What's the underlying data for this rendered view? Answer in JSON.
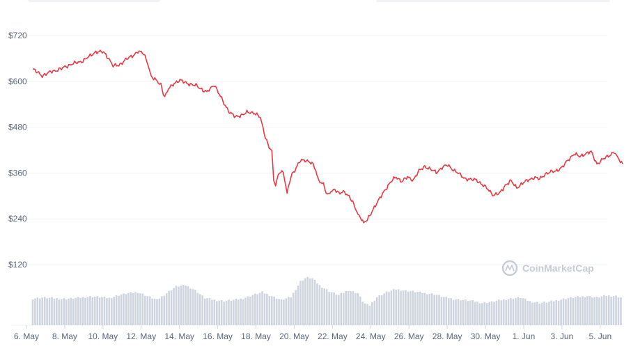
{
  "colors": {
    "price_line": "#ea3943",
    "volume_bar": "#cfd5df",
    "grid": "#eff2f5",
    "axis_text": "#58667e",
    "watermark": "#c6ccd6"
  },
  "watermark": {
    "text": "CoinMarketCap",
    "icon": "coinmarketcap-logo-icon"
  },
  "chart_data": {
    "type": "line",
    "title": "",
    "xlabel": "",
    "ylabel": "",
    "ylim": [
      20,
      800
    ],
    "grid": true,
    "x_ticks": [
      "6. May",
      "8. May",
      "10. May",
      "12. May",
      "14. May",
      "16. May",
      "18. May",
      "20. May",
      "22. May",
      "24. May",
      "26. May",
      "28. May",
      "30. May",
      "1. Jun",
      "3. Jun",
      "5. Jun"
    ],
    "y_ticks": [
      "$720",
      "$600",
      "$480",
      "$360",
      "$240",
      "$120"
    ],
    "y_tick_values": [
      720,
      600,
      480,
      360,
      240,
      120
    ],
    "series": [
      {
        "values": [
          [
            0.0,
            632
          ],
          [
            0.5,
            615
          ],
          [
            1.0,
            626
          ],
          [
            1.5,
            633
          ],
          [
            2.0,
            645
          ],
          [
            2.5,
            651
          ],
          [
            3.0,
            666
          ],
          [
            3.3,
            678
          ],
          [
            3.7,
            676
          ],
          [
            4.0,
            659
          ],
          [
            4.2,
            640
          ],
          [
            4.5,
            642
          ],
          [
            4.8,
            655
          ],
          [
            5.2,
            666
          ],
          [
            5.5,
            679
          ],
          [
            5.8,
            672
          ],
          [
            6.0,
            650
          ],
          [
            6.2,
            612
          ],
          [
            6.5,
            600
          ],
          [
            6.7,
            592
          ],
          [
            6.9,
            558
          ],
          [
            7.1,
            580
          ],
          [
            7.4,
            596
          ],
          [
            7.7,
            602
          ],
          [
            8.0,
            597
          ],
          [
            8.3,
            591
          ],
          [
            8.6,
            588
          ],
          [
            8.9,
            577
          ],
          [
            9.1,
            571
          ],
          [
            9.5,
            592
          ],
          [
            9.7,
            571
          ],
          [
            10.0,
            542
          ],
          [
            10.3,
            519
          ],
          [
            10.6,
            506
          ],
          [
            10.9,
            512
          ],
          [
            11.2,
            518
          ],
          [
            11.6,
            518
          ],
          [
            11.9,
            505
          ],
          [
            12.1,
            465
          ],
          [
            12.3,
            435
          ],
          [
            12.5,
            416
          ],
          [
            12.6,
            340
          ],
          [
            12.7,
            328
          ],
          [
            12.9,
            365
          ],
          [
            13.1,
            362
          ],
          [
            13.3,
            305
          ],
          [
            13.5,
            352
          ],
          [
            13.7,
            368
          ],
          [
            14.0,
            392
          ],
          [
            14.3,
            394
          ],
          [
            14.6,
            385
          ],
          [
            14.8,
            368
          ],
          [
            14.9,
            345
          ],
          [
            15.2,
            330
          ],
          [
            15.4,
            300
          ],
          [
            15.6,
            313
          ],
          [
            15.8,
            318
          ],
          [
            16.0,
            305
          ],
          [
            16.3,
            312
          ],
          [
            16.6,
            295
          ],
          [
            16.8,
            275
          ],
          [
            17.0,
            253
          ],
          [
            17.2,
            240
          ],
          [
            17.3,
            228
          ],
          [
            17.5,
            237
          ],
          [
            17.8,
            266
          ],
          [
            18.1,
            289
          ],
          [
            18.4,
            315
          ],
          [
            18.7,
            335
          ],
          [
            19.0,
            350
          ],
          [
            19.3,
            338
          ],
          [
            19.6,
            349
          ],
          [
            19.9,
            342
          ],
          [
            20.2,
            365
          ],
          [
            20.5,
            378
          ],
          [
            20.8,
            369
          ],
          [
            21.1,
            362
          ],
          [
            21.4,
            374
          ],
          [
            21.7,
            381
          ],
          [
            22.0,
            368
          ],
          [
            22.3,
            357
          ],
          [
            22.6,
            346
          ],
          [
            22.9,
            342
          ],
          [
            23.2,
            343
          ],
          [
            23.5,
            329
          ],
          [
            23.8,
            318
          ],
          [
            24.1,
            302
          ],
          [
            24.4,
            306
          ],
          [
            24.7,
            328
          ],
          [
            25.0,
            339
          ],
          [
            25.3,
            322
          ],
          [
            25.6,
            332
          ],
          [
            25.9,
            342
          ],
          [
            26.2,
            348
          ],
          [
            26.5,
            344
          ],
          [
            26.8,
            358
          ],
          [
            27.1,
            362
          ],
          [
            27.4,
            367
          ],
          [
            27.7,
            375
          ],
          [
            28.0,
            395
          ],
          [
            28.3,
            410
          ],
          [
            28.6,
            403
          ],
          [
            28.9,
            411
          ],
          [
            29.2,
            415
          ],
          [
            29.5,
            384
          ],
          [
            29.8,
            395
          ],
          [
            30.1,
            405
          ],
          [
            30.4,
            415
          ],
          [
            30.6,
            398
          ],
          [
            30.85,
            384
          ]
        ]
      },
      {
        "name": "Volume",
        "values": [
          [
            0.0,
            0.55
          ],
          [
            0.5,
            0.57
          ],
          [
            1.0,
            0.56
          ],
          [
            1.5,
            0.54
          ],
          [
            2.0,
            0.55
          ],
          [
            2.5,
            0.57
          ],
          [
            3.0,
            0.59
          ],
          [
            3.5,
            0.58
          ],
          [
            4.0,
            0.56
          ],
          [
            4.5,
            0.62
          ],
          [
            5.0,
            0.66
          ],
          [
            5.5,
            0.68
          ],
          [
            6.0,
            0.6
          ],
          [
            6.5,
            0.52
          ],
          [
            7.0,
            0.66
          ],
          [
            7.5,
            0.8
          ],
          [
            8.0,
            0.82
          ],
          [
            8.5,
            0.72
          ],
          [
            9.0,
            0.56
          ],
          [
            9.5,
            0.52
          ],
          [
            10.0,
            0.5
          ],
          [
            10.5,
            0.52
          ],
          [
            11.0,
            0.55
          ],
          [
            11.5,
            0.62
          ],
          [
            12.0,
            0.68
          ],
          [
            12.5,
            0.6
          ],
          [
            13.0,
            0.52
          ],
          [
            13.5,
            0.58
          ],
          [
            14.0,
            0.9
          ],
          [
            14.3,
            0.98
          ],
          [
            14.6,
            0.97
          ],
          [
            15.0,
            0.82
          ],
          [
            15.5,
            0.7
          ],
          [
            16.0,
            0.62
          ],
          [
            16.5,
            0.72
          ],
          [
            17.0,
            0.66
          ],
          [
            17.3,
            0.46
          ],
          [
            17.6,
            0.4
          ],
          [
            18.0,
            0.58
          ],
          [
            18.5,
            0.68
          ],
          [
            19.0,
            0.74
          ],
          [
            19.5,
            0.71
          ],
          [
            20.0,
            0.69
          ],
          [
            20.5,
            0.66
          ],
          [
            21.0,
            0.64
          ],
          [
            21.5,
            0.58
          ],
          [
            22.0,
            0.54
          ],
          [
            22.5,
            0.52
          ],
          [
            23.0,
            0.5
          ],
          [
            23.5,
            0.46
          ],
          [
            24.0,
            0.48
          ],
          [
            24.5,
            0.52
          ],
          [
            25.0,
            0.55
          ],
          [
            25.5,
            0.57
          ],
          [
            26.0,
            0.49
          ],
          [
            26.5,
            0.46
          ],
          [
            27.0,
            0.48
          ],
          [
            27.5,
            0.52
          ],
          [
            28.0,
            0.56
          ],
          [
            28.5,
            0.58
          ],
          [
            29.0,
            0.6
          ],
          [
            29.5,
            0.57
          ],
          [
            30.0,
            0.61
          ],
          [
            30.5,
            0.6
          ],
          [
            30.85,
            0.56
          ]
        ]
      }
    ],
    "x_unit_note_hidden": ""
  }
}
